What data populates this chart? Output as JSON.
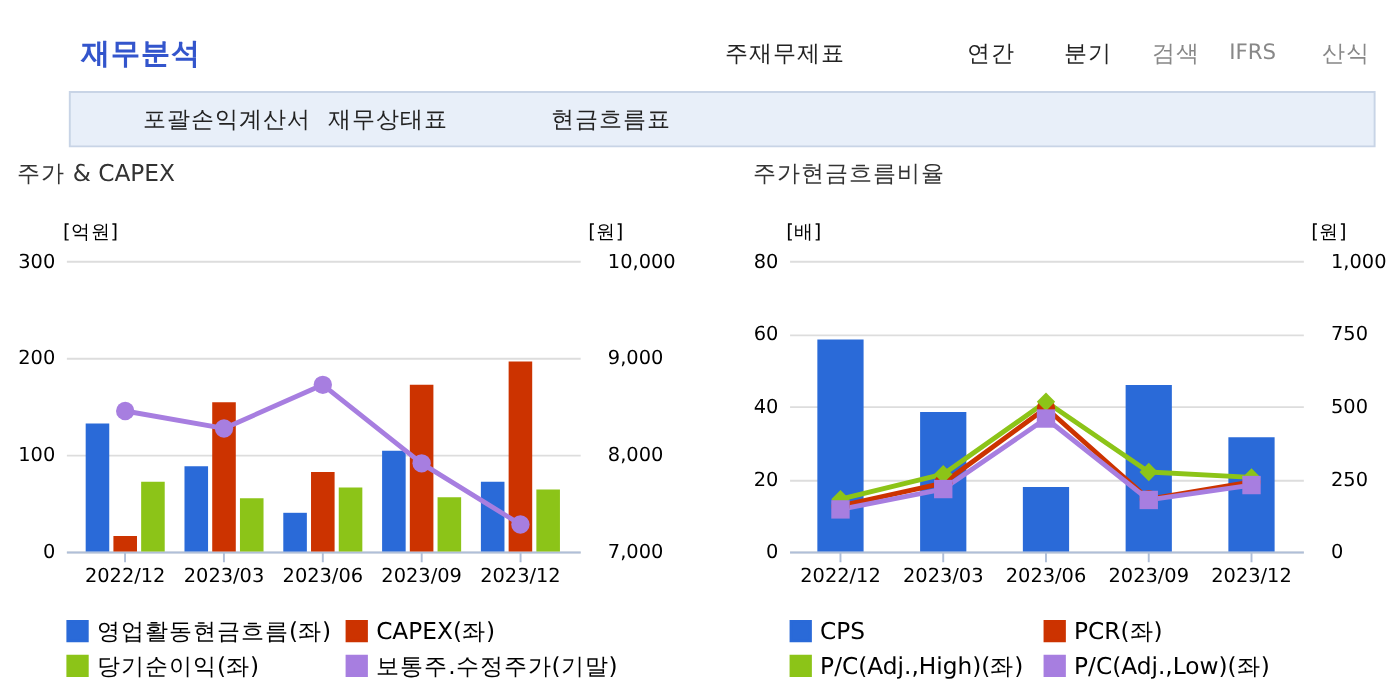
{
  "chart_data": [
    {
      "type": "other",
      "annotations": [
        "재무분석",
        "주재무제표",
        "연간",
        "분기",
        "검색",
        "IFRS",
        "산식",
        "포괄손익계산서",
        "재무상태표",
        "현금흐름표"
      ]
    },
    {
      "type": "bar",
      "title": "주가 & CAPEX",
      "ylabel": "[억원]",
      "y2label": "[원]",
      "categories": [
        "2022/12",
        "2023/03",
        "2023/06",
        "2023/09",
        "2023/12"
      ],
      "series": [
        {
          "name": "영업활동현금흐름(좌)",
          "color": "#2a6ad8",
          "values": [
            132,
            88,
            40,
            104,
            72
          ]
        },
        {
          "name": "CAPEX(좌)",
          "color": "#cc3300",
          "values": [
            16,
            154,
            82,
            172,
            196
          ]
        },
        {
          "name": "당기순이익(좌)",
          "color": "#8cc418",
          "values": [
            72,
            55,
            66,
            56,
            64
          ]
        },
        {
          "name": "보통주.수정주가(기말)",
          "color": "#a77ee0",
          "type": "line",
          "axis": "y2",
          "marker": "circle",
          "values": [
            8450,
            8270,
            8720,
            7910,
            7280
          ]
        }
      ],
      "ylim": [
        0,
        300
      ],
      "yticks": [
        0,
        100,
        200,
        300
      ],
      "y2lim": [
        7000,
        10000
      ],
      "y2ticks": [
        {
          "value": 7000,
          "label": "7,000"
        },
        {
          "value": 8000,
          "label": "8,000"
        },
        {
          "value": 9000,
          "label": "9,000"
        },
        {
          "value": 10000,
          "label": "10,000"
        }
      ],
      "grid": "y",
      "legend": "bottom"
    },
    {
      "type": "line",
      "title": "주가현금흐름비율",
      "ylabel": "[배]",
      "y2label": "[원]",
      "categories": [
        "2022/12",
        "2023/03",
        "2023/06",
        "2023/09",
        "2023/12"
      ],
      "series": [
        {
          "name": "CPS",
          "color": "#2a6ad8",
          "type": "bar",
          "axis": "y2",
          "values": [
            729,
            480,
            222,
            573,
            393
          ]
        },
        {
          "name": "PCR(좌)",
          "color": "#cc3300",
          "marker": "circle",
          "values": [
            12.6,
            18.8,
            39.5,
            14.4,
            19.2
          ]
        },
        {
          "name": "P/C(Adj.,High)(좌)",
          "color": "#8cc418",
          "marker": "diamond",
          "values": [
            14.4,
            21.3,
            41.2,
            21.9,
            20.4
          ]
        },
        {
          "name": "P/C(Adj.,Low)(좌)",
          "color": "#a77ee0",
          "marker": "square",
          "values": [
            11.6,
            17.2,
            36.6,
            14.2,
            18.3
          ]
        }
      ],
      "ylim": [
        0,
        80
      ],
      "yticks": [
        0,
        20,
        40,
        60,
        80
      ],
      "y2lim": [
        0,
        1000
      ],
      "y2ticks": [
        0,
        250,
        500,
        750,
        {
          "value": 1000,
          "label": "1,000"
        }
      ],
      "grid": "y",
      "legend": "bottom"
    }
  ]
}
